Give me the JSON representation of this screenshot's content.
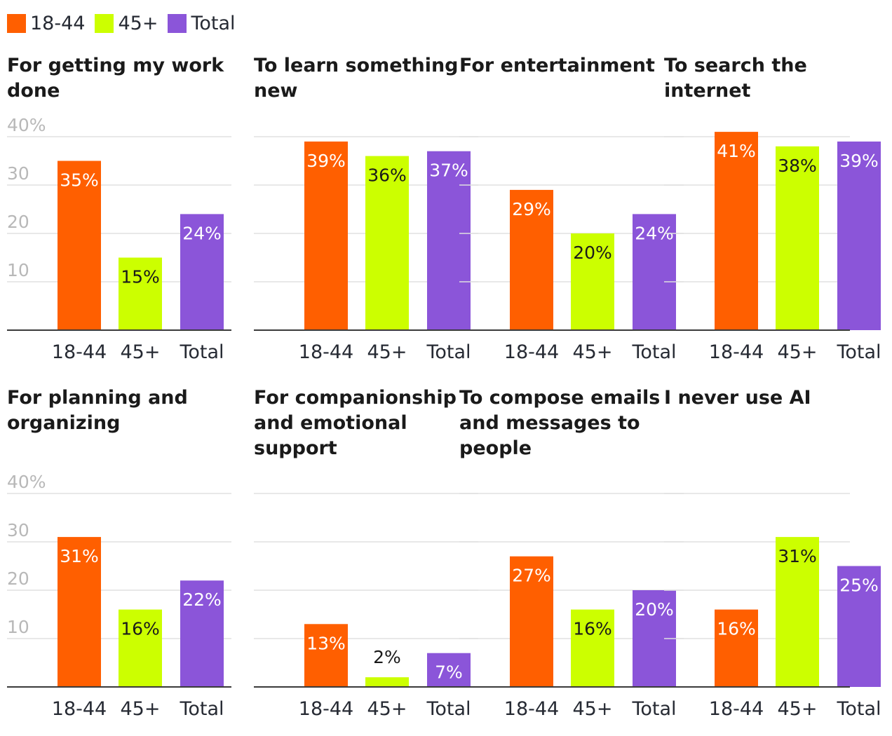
{
  "legend": [
    {
      "label": "18-44",
      "color": "#ff5f00"
    },
    {
      "label": "45+",
      "color": "#ccff00"
    },
    {
      "label": "Total",
      "color": "#8b55d9"
    }
  ],
  "colors": {
    "grid": "#e0e0e0",
    "axis": "#3a3a3a",
    "text": "#262a33",
    "tick": "#b8b8b8"
  },
  "chart_data": [
    {
      "type": "bar",
      "title": "For getting my work done",
      "categories": [
        "18-44",
        "45+",
        "Total"
      ],
      "values": [
        35,
        15,
        24
      ],
      "labels": [
        "35%",
        "15%",
        "24%"
      ],
      "ylim": [
        0,
        40
      ],
      "yticks": [
        "40%",
        "30",
        "20",
        "10"
      ],
      "show_yticks": true
    },
    {
      "type": "bar",
      "title": "To learn something new",
      "categories": [
        "18-44",
        "45+",
        "Total"
      ],
      "values": [
        39,
        36,
        37
      ],
      "labels": [
        "39%",
        "36%",
        "37%"
      ],
      "ylim": [
        0,
        40
      ],
      "show_yticks": false
    },
    {
      "type": "bar",
      "title": "For entertainment",
      "categories": [
        "18-44",
        "45+",
        "Total"
      ],
      "values": [
        29,
        20,
        24
      ],
      "labels": [
        "29%",
        "20%",
        "24%"
      ],
      "ylim": [
        0,
        40
      ],
      "show_yticks": false
    },
    {
      "type": "bar",
      "title": "To search the internet",
      "categories": [
        "18-44",
        "45+",
        "Total"
      ],
      "values": [
        41,
        38,
        39
      ],
      "labels": [
        "41%",
        "38%",
        "39%"
      ],
      "ylim": [
        0,
        40
      ],
      "show_yticks": false
    },
    {
      "type": "bar",
      "title": "For planning and organizing",
      "categories": [
        "18-44",
        "45+",
        "Total"
      ],
      "values": [
        31,
        16,
        22
      ],
      "labels": [
        "31%",
        "16%",
        "22%"
      ],
      "ylim": [
        0,
        40
      ],
      "yticks": [
        "40%",
        "30",
        "20",
        "10"
      ],
      "show_yticks": true
    },
    {
      "type": "bar",
      "title": "For companionship and emotional support",
      "categories": [
        "18-44",
        "45+",
        "Total"
      ],
      "values": [
        13,
        2,
        7
      ],
      "labels": [
        "13%",
        "2%",
        "7%"
      ],
      "ylim": [
        0,
        40
      ],
      "show_yticks": false
    },
    {
      "type": "bar",
      "title": "To compose emails and messages to people",
      "categories": [
        "18-44",
        "45+",
        "Total"
      ],
      "values": [
        27,
        16,
        20
      ],
      "labels": [
        "27%",
        "16%",
        "20%"
      ],
      "ylim": [
        0,
        40
      ],
      "show_yticks": false
    },
    {
      "type": "bar",
      "title": "I never use AI",
      "categories": [
        "18-44",
        "45+",
        "Total"
      ],
      "values": [
        16,
        31,
        25
      ],
      "labels": [
        "16%",
        "31%",
        "25%"
      ],
      "ylim": [
        0,
        40
      ],
      "show_yticks": false
    }
  ]
}
